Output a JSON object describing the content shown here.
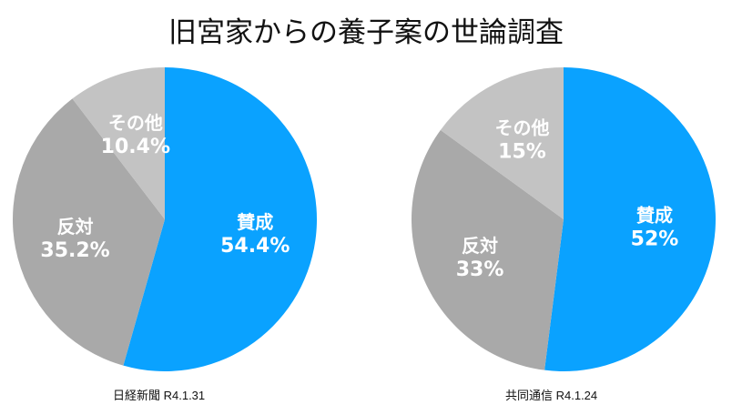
{
  "title": "旧宮家からの養子案の世論調査",
  "colors": {
    "agree": "#0aa2ff",
    "oppose": "#a9a9a9",
    "other": "#c3c3c3"
  },
  "chart_data": [
    {
      "type": "pie",
      "source": "日経新聞 R4.1.31",
      "slices": [
        {
          "label": "賛成",
          "value": 54.4,
          "display": "54.4%",
          "color": "#0aa2ff"
        },
        {
          "label": "反対",
          "value": 35.2,
          "display": "35.2%",
          "color": "#a9a9a9"
        },
        {
          "label": "その他",
          "value": 10.4,
          "display": "10.4%",
          "color": "#c3c3c3"
        }
      ]
    },
    {
      "type": "pie",
      "source": "共同通信 R4.1.24",
      "slices": [
        {
          "label": "賛成",
          "value": 52,
          "display": "52%",
          "color": "#0aa2ff"
        },
        {
          "label": "反対",
          "value": 33,
          "display": "33%",
          "color": "#a9a9a9"
        },
        {
          "label": "その他",
          "value": 15,
          "display": "15%",
          "color": "#c3c3c3"
        }
      ]
    }
  ]
}
